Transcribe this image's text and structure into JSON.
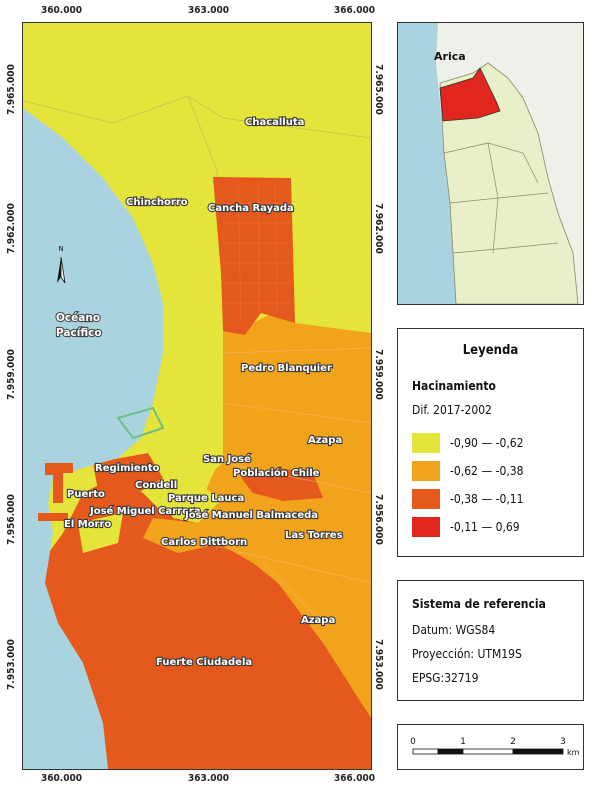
{
  "coordinates": {
    "x_top": [
      "360.000",
      "363.000",
      "366.000"
    ],
    "x_bottom": [
      "360.000",
      "363.000",
      "366.000"
    ],
    "y_left": [
      "7.965.000",
      "7.962.000",
      "7.959.000",
      "7.956.000",
      "7.953.000"
    ],
    "y_right": [
      "7.965.000",
      "7.962.000",
      "7.959.000",
      "7.956.000",
      "7.953.000"
    ]
  },
  "map_labels": {
    "chacalluta": "Chacalluta",
    "chinchorro": "Chinchorro",
    "cancha_rayada": "Cancha Rayada",
    "pedro_blanquier": "Pedro Blanquier",
    "azapa_1": "Azapa",
    "san_jose": "San José",
    "poblacion_chile": "Población Chile",
    "regimiento": "Regimiento",
    "condell": "Condell",
    "puerto": "Puerto",
    "parque_lauca": "Parque Lauca",
    "jose_miguel_carrera": "José Miguel Carrera",
    "jose_manuel_balmaceda": "José Manuel Balmaceda",
    "el_morro": "El Morro",
    "las_torres": "Las Torres",
    "carlos_dittborn": "Carlos Dittborn",
    "azapa_2": "Azapa",
    "fuerte_ciudadela": "Fuerte Ciudadela",
    "oceano_1": "Océano",
    "oceano_2": "Pacífico",
    "north": "N"
  },
  "inset": {
    "label": "Arica"
  },
  "legend": {
    "title": "Leyenda",
    "variable": "Hacinamiento",
    "subtitle": "Dif. 2017-2002",
    "classes": [
      {
        "label": "-0,90 — -0,62",
        "color": "#e5e43a"
      },
      {
        "label": "-0,62 — -0,38",
        "color": "#f2a31c"
      },
      {
        "label": "-0,38 — -0,11",
        "color": "#e55a1c"
      },
      {
        "label": "-0,11 — 0,69",
        "color": "#e0261e"
      }
    ]
  },
  "reference": {
    "title": "Sistema de referencia",
    "datum": "Datum: WGS84",
    "projection": "Proyección: UTM19S",
    "epsg": "EPSG:32719"
  },
  "scalebar": {
    "ticks": [
      "0",
      "1",
      "2",
      "3"
    ],
    "unit": "km"
  },
  "colors": {
    "ocean": "#a9d3de",
    "class1": "#e5e43a",
    "class2": "#f2a31c",
    "class3": "#e55a1c",
    "class4": "#e0261e",
    "inset_land": "#e8efc9",
    "inset_terrain": "#f0f0ea"
  }
}
